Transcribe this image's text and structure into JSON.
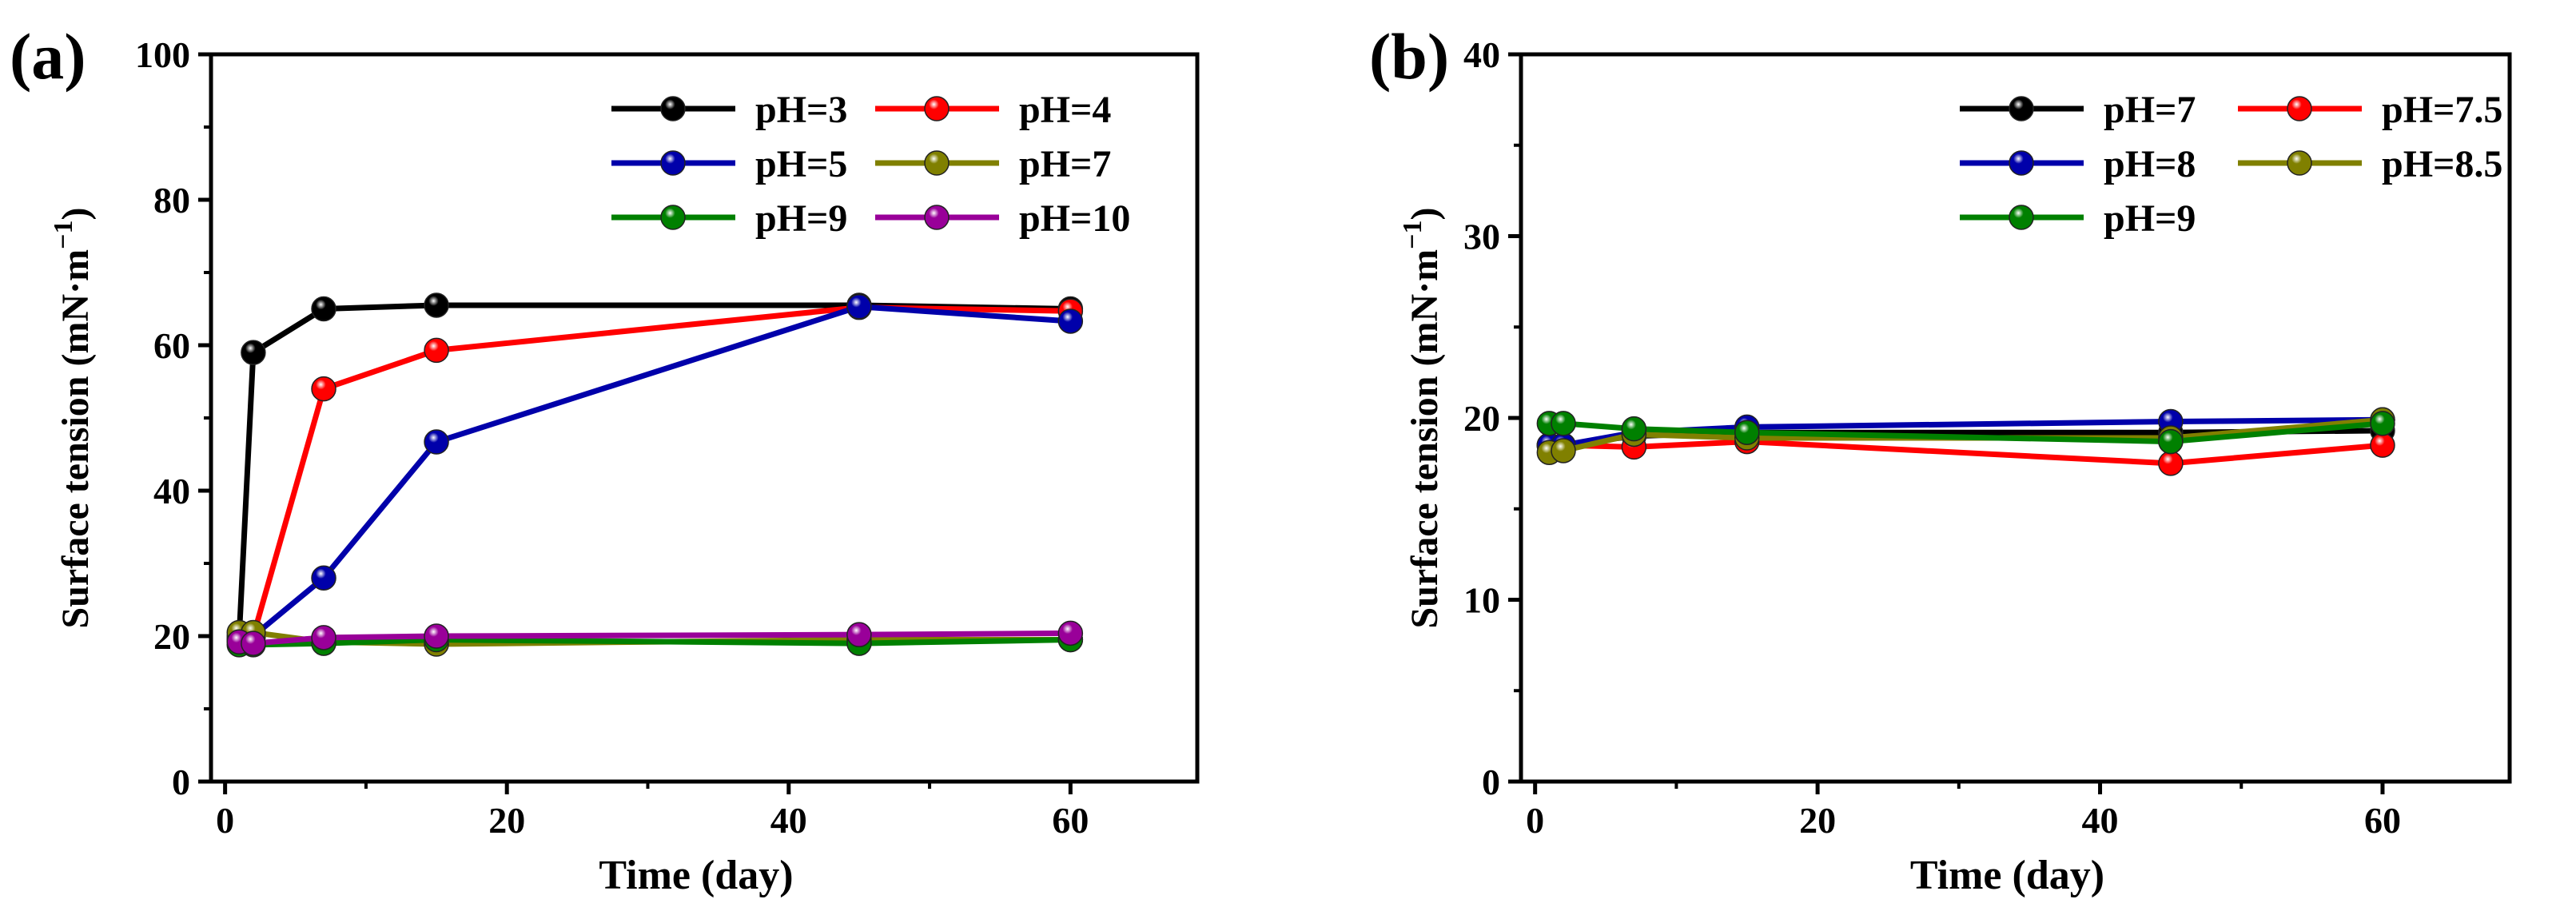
{
  "chart_data": [
    {
      "panel_label": "(a)",
      "type": "line",
      "xlabel": "Time (day)",
      "ylabel": "Surface tension (mN·m",
      "ylabel_exponent": "−1",
      "ylabel_close": ")",
      "xlim": [
        -1,
        69
      ],
      "ylim": [
        0,
        100
      ],
      "xticks": [
        0,
        20,
        40,
        60
      ],
      "yticks": [
        0,
        20,
        40,
        60,
        80,
        100
      ],
      "grid": false,
      "legend_position": "top-right",
      "legend_columns": 2,
      "x": [
        1,
        2,
        7,
        15,
        45,
        60
      ],
      "series": [
        {
          "name": "pH=3",
          "color": "#000000",
          "values": [
            20,
            59,
            65,
            65.5,
            65.5,
            65
          ]
        },
        {
          "name": "pH=4",
          "color": "#ff0000",
          "values": [
            19.5,
            20,
            54,
            59.3,
            65.2,
            64.7
          ]
        },
        {
          "name": "pH=5",
          "color": "#0000aa",
          "values": [
            19.5,
            20,
            28,
            46.7,
            65.3,
            63.3
          ]
        },
        {
          "name": "pH=7",
          "color": "#808000",
          "values": [
            20.5,
            20.5,
            19.2,
            18.9,
            19.5,
            19.5
          ]
        },
        {
          "name": "pH=9",
          "color": "#008000",
          "values": [
            18.8,
            18.8,
            19,
            19.5,
            19,
            19.5
          ]
        },
        {
          "name": "pH=10",
          "color": "#990099",
          "values": [
            19.2,
            19,
            19.8,
            20,
            20.2,
            20.4
          ]
        }
      ]
    },
    {
      "panel_label": "(b)",
      "type": "line",
      "xlabel": "Time (day)",
      "ylabel": "Surface tension (mN·m",
      "ylabel_exponent": "−1",
      "ylabel_close": ")",
      "xlim": [
        -1,
        69
      ],
      "ylim": [
        0,
        40
      ],
      "xticks": [
        0,
        20,
        40,
        60
      ],
      "yticks": [
        0,
        10,
        20,
        30,
        40
      ],
      "grid": false,
      "legend_position": "top-right",
      "legend_columns": 2,
      "x": [
        1,
        2,
        7,
        15,
        45,
        60
      ],
      "series": [
        {
          "name": "pH=7",
          "color": "#000000",
          "values": [
            18.5,
            18.5,
            19,
            19.2,
            19.2,
            19.3
          ]
        },
        {
          "name": "pH=7.5",
          "color": "#ff0000",
          "values": [
            18.5,
            18.5,
            18.4,
            18.7,
            17.5,
            18.5
          ]
        },
        {
          "name": "pH=8",
          "color": "#0000aa",
          "values": [
            18.5,
            18.5,
            19.2,
            19.5,
            19.8,
            19.9
          ]
        },
        {
          "name": "pH=8.5",
          "color": "#808000",
          "values": [
            18.1,
            18.2,
            19.1,
            18.9,
            18.9,
            19.9
          ]
        },
        {
          "name": "pH=9",
          "color": "#008000",
          "values": [
            19.7,
            19.7,
            19.4,
            19.2,
            18.7,
            19.7
          ]
        }
      ]
    }
  ]
}
